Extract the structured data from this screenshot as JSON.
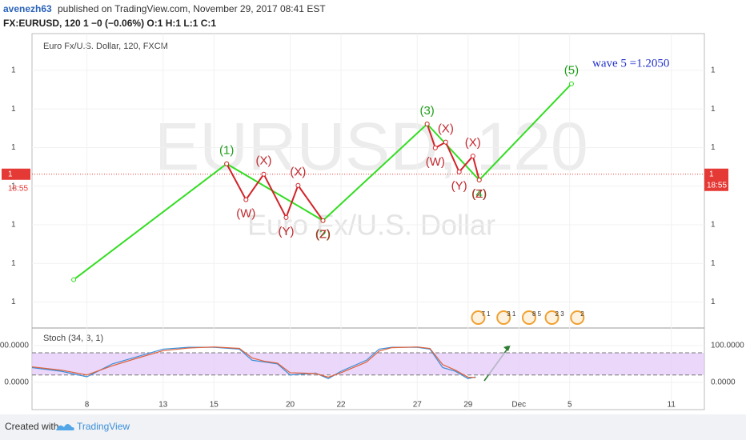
{
  "header": {
    "author": "avenezh63",
    "published": "published on TradingView.com, November 29, 2017 08:41 EST",
    "symbol_line": "FX:EURUSD, 120  1 −0 (−0.06%)  O:1  H:1  L:1  C:1"
  },
  "footer": {
    "created_with": "Created with",
    "brand": "TradingView"
  },
  "chart_data": [
    {
      "type": "line",
      "title": "Euro Fx/U.S. Dollar, 120, FXCM",
      "watermark": "EURUSD, 120",
      "watermark_subtitle": "Euro Fx/U.S. Dollar",
      "annotation": "wave 5 =1.2050",
      "xlim": [
        2.84,
        29.3
      ],
      "xticks": [
        {
          "value": 5,
          "label": "8"
        },
        {
          "value": 8,
          "label": "13"
        },
        {
          "value": 10,
          "label": "15"
        },
        {
          "value": 13,
          "label": "20"
        },
        {
          "value": 15,
          "label": "22"
        },
        {
          "value": 18,
          "label": "27"
        },
        {
          "value": 20,
          "label": "29"
        },
        {
          "value": 22,
          "label": "Dec"
        },
        {
          "value": 24,
          "label": "5"
        },
        {
          "value": 28,
          "label": "11"
        }
      ],
      "ylim": [
        1.1437,
        1.2195
      ],
      "yticks": [
        {
          "value": 1.21,
          "label": "1"
        },
        {
          "value": 1.2,
          "label": "1"
        },
        {
          "value": 1.19,
          "label": "1"
        },
        {
          "value": 1.18,
          "label": "1"
        },
        {
          "value": 1.17,
          "label": "1"
        },
        {
          "value": 1.16,
          "label": "1"
        },
        {
          "value": 1.15,
          "label": "1"
        }
      ],
      "last_price": {
        "value": 1.1831,
        "label": "1"
      },
      "countdown": "18:55",
      "series": [
        {
          "color": "#33dd22",
          "label_color": "#1f9e1a",
          "x": [
            4.48,
            10.5,
            14.29,
            18.39,
            20.44,
            24.07
          ],
          "values": [
            1.1558,
            1.1858,
            1.1711,
            1.1961,
            1.1816,
            1.2065
          ],
          "point_labels": [
            null,
            "(1)",
            "(2)",
            "(3)",
            "(4)",
            "(5)"
          ]
        },
        {
          "color": "#d2232a",
          "label_color": "#c0272d",
          "x": [
            10.5,
            11.26,
            11.96,
            12.84,
            13.31,
            14.29
          ],
          "values": [
            1.1858,
            1.1765,
            1.1831,
            1.1719,
            1.1802,
            1.1711
          ],
          "point_labels": [
            null,
            "(W)",
            "(X)",
            "(Y)",
            "(X)",
            "(Z)"
          ]
        },
        {
          "color": "#d2232a",
          "label_color": "#c0272d",
          "x": [
            18.39,
            18.71,
            19.12,
            19.65,
            20.19,
            20.44
          ],
          "values": [
            1.1961,
            1.1899,
            1.1914,
            1.1837,
            1.1878,
            1.1816
          ],
          "point_labels": [
            null,
            "(W)",
            "(X)",
            "(Y)",
            "(X)",
            "(Z)"
          ]
        }
      ],
      "events": [
        {
          "x": 20.4,
          "label": "7 1"
        },
        {
          "x": 21.4,
          "label": "3 1"
        },
        {
          "x": 22.4,
          "label": "8 5"
        },
        {
          "x": 23.3,
          "label": "2 3"
        },
        {
          "x": 24.3,
          "label": "2"
        }
      ]
    },
    {
      "type": "line",
      "title": "Stoch (34, 3, 1)",
      "xlim": [
        2.84,
        29.3
      ],
      "ylim": [
        -37,
        143
      ],
      "yticks": [
        {
          "value": 100,
          "label": "100.0000"
        },
        {
          "value": 0,
          "label": "0.0000"
        }
      ],
      "band": [
        20,
        80
      ],
      "band_color": "#e3c9f7",
      "series": [
        {
          "color": "#3a8fd9",
          "x": [
            2.84,
            4,
            5,
            6,
            7,
            8,
            9,
            10,
            11,
            11.5,
            12,
            12.5,
            13,
            14,
            14.5,
            15,
            16,
            16.5,
            17,
            18,
            18.5,
            19,
            19.5,
            20,
            20.3
          ],
          "values": [
            40,
            30,
            15,
            50,
            70,
            90,
            95,
            95,
            90,
            60,
            55,
            50,
            20,
            25,
            10,
            30,
            60,
            90,
            95,
            95,
            90,
            40,
            30,
            10,
            15
          ]
        },
        {
          "color": "#e0603a",
          "x": [
            2.84,
            4,
            5,
            6,
            7,
            8,
            9,
            10,
            11,
            11.5,
            12,
            12.5,
            13,
            14,
            14.5,
            15,
            16,
            16.5,
            17,
            18,
            18.5,
            19,
            19.5,
            20,
            20.3
          ],
          "values": [
            42,
            33,
            20,
            45,
            66,
            86,
            93,
            96,
            92,
            66,
            57,
            52,
            26,
            24,
            14,
            26,
            55,
            85,
            94,
            96,
            92,
            48,
            33,
            14,
            13
          ]
        }
      ]
    }
  ]
}
